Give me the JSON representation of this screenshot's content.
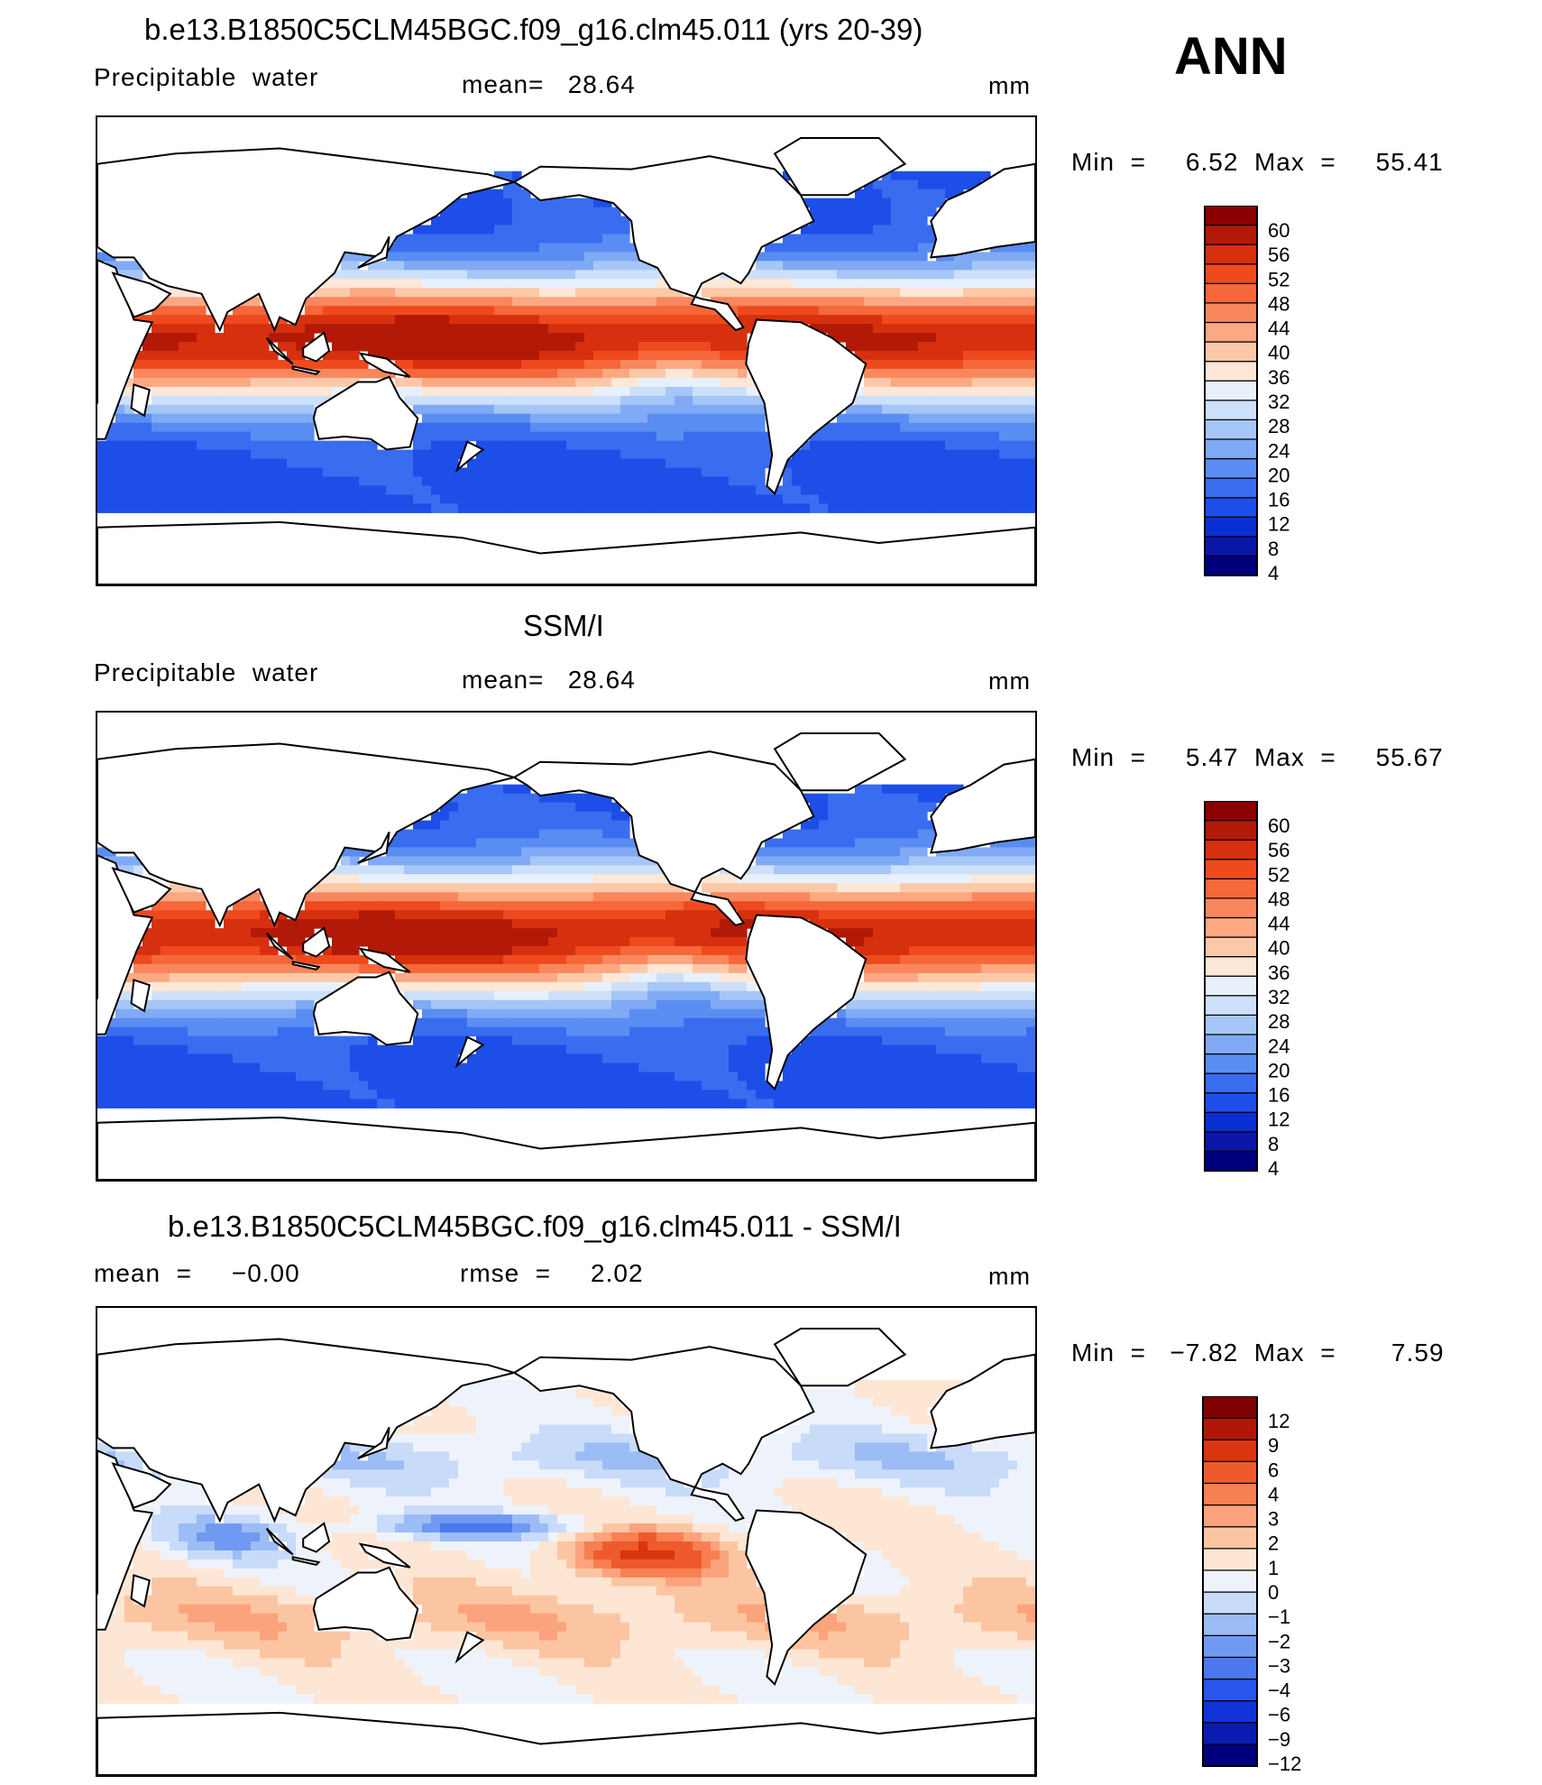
{
  "season": "ANN",
  "colors": {
    "pw_scale": [
      "#00007f",
      "#0a16a8",
      "#0a2fd0",
      "#1d4ee8",
      "#3a6cf0",
      "#5a8df2",
      "#80aaf5",
      "#a6c6f7",
      "#cde0f9",
      "#e8f1fb",
      "#fde7d6",
      "#fcc9a8",
      "#fba883",
      "#f9875d",
      "#f6673a",
      "#ee4a1e",
      "#d6300f",
      "#b21a07",
      "#8b0000"
    ],
    "diff_scale": [
      "#00007f",
      "#0a1bb0",
      "#1034d8",
      "#2955ea",
      "#4c78ee",
      "#7099f1",
      "#9bbcf5",
      "#c8dbf9",
      "#eef3fb",
      "#fde6d4",
      "#fcc5a2",
      "#fba37c",
      "#f77f52",
      "#ee5a2c",
      "#d9350f",
      "#b01706",
      "#7f0000"
    ]
  },
  "panels": [
    {
      "id": "model",
      "title": "b.e13.B1850C5CLM45BGC.f09_g16.clm45.011 (yrs 20-39)",
      "left_label": "Precipitable  water",
      "mid_label": "mean=   28.64",
      "units": "mm",
      "minmax": "Min  =     6.52  Max  =     55.41",
      "chart_data": {
        "type": "heatmap",
        "title": "b.e13.B1850C5CLM45BGC.f09_g16.clm45.011 (yrs 20-39)",
        "variable": "Precipitable water",
        "units": "mm",
        "mean": 28.64,
        "min": 6.52,
        "max": 55.41,
        "contour_levels": [
          4,
          8,
          12,
          16,
          20,
          24,
          28,
          32,
          36,
          40,
          44,
          48,
          52,
          56,
          60
        ]
      },
      "colorbar_labels": [
        "60",
        "56",
        "52",
        "48",
        "44",
        "40",
        "36",
        "32",
        "28",
        "24",
        "20",
        "16",
        "12",
        "8",
        "4"
      ]
    },
    {
      "id": "obs",
      "title": "SSM/I",
      "left_label": "Precipitable  water",
      "mid_label": "mean=   28.64",
      "units": "mm",
      "minmax": "Min  =     5.47  Max  =     55.67",
      "chart_data": {
        "type": "heatmap",
        "title": "SSM/I",
        "variable": "Precipitable water",
        "units": "mm",
        "mean": 28.64,
        "min": 5.47,
        "max": 55.67,
        "contour_levels": [
          4,
          8,
          12,
          16,
          20,
          24,
          28,
          32,
          36,
          40,
          44,
          48,
          52,
          56,
          60
        ]
      },
      "colorbar_labels": [
        "60",
        "56",
        "52",
        "48",
        "44",
        "40",
        "36",
        "32",
        "28",
        "24",
        "20",
        "16",
        "12",
        "8",
        "4"
      ]
    },
    {
      "id": "diff",
      "title": "b.e13.B1850C5CLM45BGC.f09_g16.clm45.011 - SSM/I",
      "left_label": "mean  =     −0.00",
      "mid_label": "rmse  =     2.02",
      "units": "mm",
      "minmax": "Min  =   −7.82  Max  =       7.59",
      "chart_data": {
        "type": "heatmap",
        "title": "b.e13.B1850C5CLM45BGC.f09_g16.clm45.011 - SSM/I",
        "units": "mm",
        "mean": -0.0,
        "rmse": 2.02,
        "min": -7.82,
        "max": 7.59,
        "contour_levels": [
          -12,
          -9,
          -6,
          -4,
          -3,
          -2,
          -1,
          0,
          1,
          2,
          3,
          4,
          6,
          9,
          12
        ]
      },
      "colorbar_labels": [
        "12",
        "9",
        "6",
        "4",
        "3",
        "2",
        "1",
        "0",
        "−1",
        "−2",
        "−3",
        "−4",
        "−6",
        "−9",
        "−12"
      ]
    }
  ]
}
